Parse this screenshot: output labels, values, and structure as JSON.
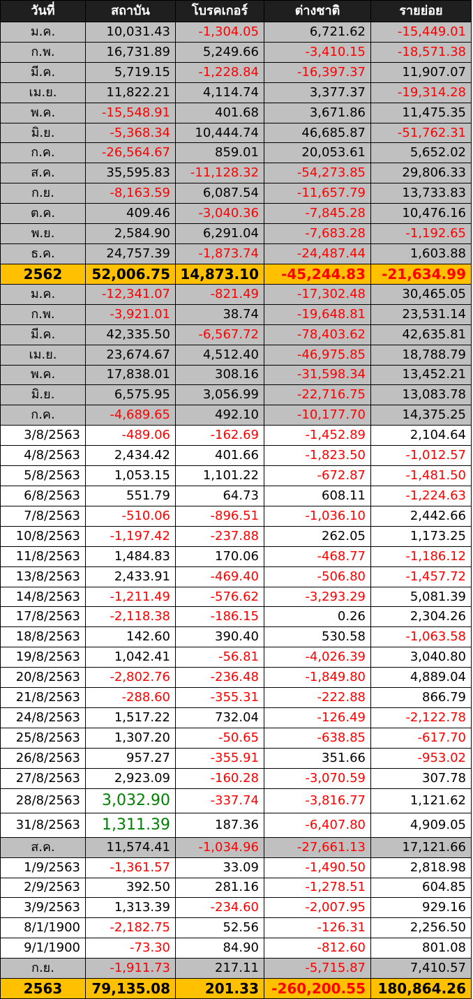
{
  "headers": [
    "วันที่",
    "สถาบัน",
    "โบรคเกอร์",
    "ต่างชาติ",
    "รายย่อย"
  ],
  "rows": [
    {
      "type": "month",
      "label": "ม.ค.",
      "values": [
        "10,031.43",
        "-1,304.05",
        "6,721.62",
        "-15,449.01"
      ]
    },
    {
      "type": "month",
      "label": "ก.พ.",
      "values": [
        "16,731.89",
        "5,249.66",
        "-3,410.15",
        "-18,571.38"
      ]
    },
    {
      "type": "month",
      "label": "มี.ค.",
      "values": [
        "5,719.15",
        "-1,228.84",
        "-16,397.37",
        "11,907.07"
      ]
    },
    {
      "type": "month",
      "label": "เม.ย.",
      "values": [
        "11,822.21",
        "4,114.74",
        "3,377.37",
        "-19,314.28"
      ]
    },
    {
      "type": "month",
      "label": "พ.ค.",
      "values": [
        "-15,548.91",
        "401.68",
        "3,671.86",
        "11,475.35"
      ]
    },
    {
      "type": "month",
      "label": "มิ.ย.",
      "values": [
        "-5,368.34",
        "10,444.74",
        "46,685.87",
        "-51,762.31"
      ]
    },
    {
      "type": "month",
      "label": "ก.ค.",
      "values": [
        "-26,564.67",
        "859.01",
        "20,053.61",
        "5,652.02"
      ]
    },
    {
      "type": "month",
      "label": "ส.ค.",
      "values": [
        "35,595.83",
        "-11,128.32",
        "-54,273.85",
        "29,806.33"
      ]
    },
    {
      "type": "month",
      "label": "ก.ย.",
      "values": [
        "-8,163.59",
        "6,087.54",
        "-11,657.79",
        "13,733.83"
      ]
    },
    {
      "type": "month",
      "label": "ต.ค.",
      "values": [
        "409.46",
        "-3,040.36",
        "-7,845.28",
        "10,476.16"
      ]
    },
    {
      "type": "month",
      "label": "พ.ย.",
      "values": [
        "2,584.90",
        "6,291.04",
        "-7,683.28",
        "-1,192.65"
      ]
    },
    {
      "type": "month",
      "label": "ธ.ค.",
      "values": [
        "24,757.39",
        "-1,873.74",
        "-24,487.44",
        "1,603.88"
      ]
    },
    {
      "type": "total",
      "label": "2562",
      "values": [
        "52,006.75",
        "14,873.10",
        "-45,244.83",
        "-21,634.99"
      ]
    },
    {
      "type": "month",
      "label": "ม.ค.",
      "values": [
        "-12,341.07",
        "-821.49",
        "-17,302.48",
        "30,465.05"
      ]
    },
    {
      "type": "month",
      "label": "ก.พ.",
      "values": [
        "-3,921.01",
        "38.74",
        "-19,648.81",
        "23,531.14"
      ]
    },
    {
      "type": "month",
      "label": "มี.ค.",
      "values": [
        "42,335.50",
        "-6,567.72",
        "-78,403.62",
        "42,635.81"
      ]
    },
    {
      "type": "month",
      "label": "เม.ย.",
      "values": [
        "23,674.67",
        "4,512.40",
        "-46,975.85",
        "18,788.79"
      ]
    },
    {
      "type": "month",
      "label": "พ.ค.",
      "values": [
        "17,838.01",
        "308.16",
        "-31,598.34",
        "13,452.21"
      ]
    },
    {
      "type": "month",
      "label": "มิ.ย.",
      "values": [
        "6,575.95",
        "3,056.99",
        "-22,716.75",
        "13,083.78"
      ]
    },
    {
      "type": "month",
      "label": "ก.ค.",
      "values": [
        "-4,689.65",
        "492.10",
        "-10,177.70",
        "14,375.25"
      ]
    },
    {
      "type": "daily",
      "label": "3/8/2563",
      "values": [
        "-489.06",
        "-162.69",
        "-1,452.89",
        "2,104.64"
      ]
    },
    {
      "type": "daily",
      "label": "4/8/2563",
      "values": [
        "2,434.42",
        "401.66",
        "-1,823.50",
        "-1,012.57"
      ]
    },
    {
      "type": "daily",
      "label": "5/8/2563",
      "values": [
        "1,053.15",
        "1,101.22",
        "-672.87",
        "-1,481.50"
      ]
    },
    {
      "type": "daily",
      "label": "6/8/2563",
      "values": [
        "551.79",
        "64.73",
        "608.11",
        "-1,224.63"
      ]
    },
    {
      "type": "daily",
      "label": "7/8/2563",
      "values": [
        "-510.06",
        "-896.51",
        "-1,036.10",
        "2,442.66"
      ]
    },
    {
      "type": "daily",
      "label": "10/8/2563",
      "values": [
        "-1,197.42",
        "-237.88",
        "262.05",
        "1,173.25"
      ]
    },
    {
      "type": "daily",
      "label": "11/8/2563",
      "values": [
        "1,484.83",
        "170.06",
        "-468.77",
        "-1,186.12"
      ]
    },
    {
      "type": "daily",
      "label": "13/8/2563",
      "values": [
        "2,433.91",
        "-469.40",
        "-506.80",
        "-1,457.72"
      ]
    },
    {
      "type": "daily",
      "label": "14/8/2563",
      "values": [
        "-1,211.49",
        "-576.62",
        "-3,293.29",
        "5,081.39"
      ]
    },
    {
      "type": "daily",
      "label": "17/8/2563",
      "values": [
        "-2,118.38",
        "-186.15",
        "0.26",
        "2,304.26"
      ]
    },
    {
      "type": "daily",
      "label": "18/8/2563",
      "values": [
        "142.60",
        "390.40",
        "530.58",
        "-1,063.58"
      ]
    },
    {
      "type": "daily",
      "label": "19/8/2563",
      "values": [
        "1,042.41",
        "-56.81",
        "-4,026.39",
        "3,040.80"
      ]
    },
    {
      "type": "daily",
      "label": "20/8/2563",
      "values": [
        "-2,802.76",
        "-236.48",
        "-1,849.80",
        "4,889.04"
      ]
    },
    {
      "type": "daily",
      "label": "21/8/2563",
      "values": [
        "-288.60",
        "-355.31",
        "-222.88",
        "866.79"
      ]
    },
    {
      "type": "daily",
      "label": "24/8/2563",
      "values": [
        "1,517.22",
        "732.04",
        "-126.49",
        "-2,122.78"
      ]
    },
    {
      "type": "daily",
      "label": "25/8/2563",
      "values": [
        "1,307.20",
        "-50.65",
        "-638.85",
        "-617.70"
      ]
    },
    {
      "type": "daily",
      "label": "26/8/2563",
      "values": [
        "957.27",
        "-355.91",
        "351.66",
        "-953.02"
      ]
    },
    {
      "type": "daily",
      "label": "27/8/2563",
      "values": [
        "2,923.09",
        "-160.28",
        "-3,070.59",
        "307.78"
      ]
    },
    {
      "type": "daily",
      "label": "28/8/2563",
      "values": [
        "3,032.90",
        "-337.74",
        "-3,816.77",
        "1,121.62"
      ],
      "highlight": [
        0
      ]
    },
    {
      "type": "daily",
      "label": "31/8/2563",
      "values": [
        "1,311.39",
        "187.36",
        "-6,407.80",
        "4,909.05"
      ],
      "highlight": [
        0
      ]
    },
    {
      "type": "month",
      "label": "ส.ค.",
      "values": [
        "11,574.41",
        "-1,034.96",
        "-27,661.13",
        "17,121.66"
      ]
    },
    {
      "type": "daily",
      "label": "1/9/2563",
      "values": [
        "-1,361.57",
        "33.09",
        "-1,490.50",
        "2,818.98"
      ]
    },
    {
      "type": "daily",
      "label": "2/9/2563",
      "values": [
        "392.50",
        "281.16",
        "-1,278.51",
        "604.85"
      ]
    },
    {
      "type": "daily",
      "label": "3/9/2563",
      "values": [
        "1,313.39",
        "-234.60",
        "-2,007.95",
        "929.16"
      ]
    },
    {
      "type": "daily",
      "label": "8/1/1900",
      "values": [
        "-2,182.75",
        "52.56",
        "-126.31",
        "2,256.50"
      ]
    },
    {
      "type": "daily",
      "label": "9/1/1900",
      "values": [
        "-73.30",
        "84.90",
        "-812.60",
        "801.08"
      ]
    },
    {
      "type": "month",
      "label": "ก.ย.",
      "values": [
        "-1,911.73",
        "217.11",
        "-5,715.87",
        "7,410.57"
      ]
    },
    {
      "type": "total",
      "label": "2563",
      "values": [
        "79,135.08",
        "201.33",
        "-260,200.55",
        "180,864.26"
      ]
    }
  ],
  "colors": {
    "header_bg": "#1f1f1f",
    "month_bg": "#c0c0c0",
    "total_bg": "#ffc000",
    "negative": "#ff0000",
    "highlight": "#008000"
  }
}
